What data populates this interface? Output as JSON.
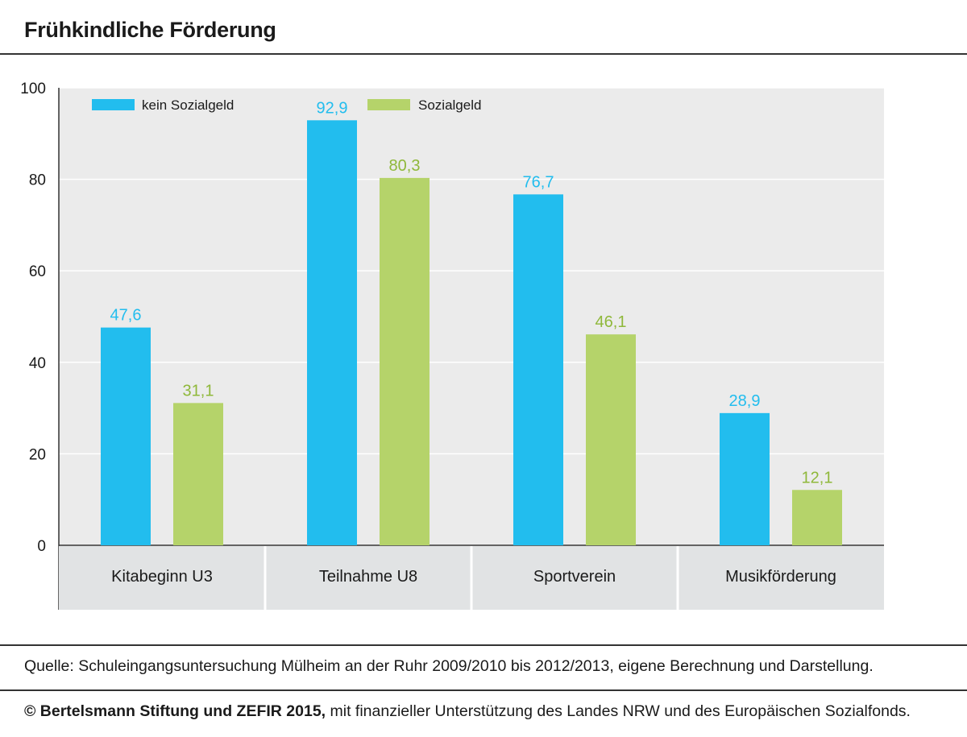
{
  "title": "Frühkindliche Förderung",
  "source": "Quelle: Schuleingangsuntersuchung Mülheim an der Ruhr 2009/2010 bis 2012/2013, eigene Berechnung und Darstellung.",
  "footer": {
    "bold": "© Bertelsmann Stiftung und ZEFIR 2015,",
    "rest": " mit finanzieller Unterstützung des Landes NRW und des Europäischen Sozialfonds."
  },
  "colors": {
    "kein_sozialgeld": "#22bdee",
    "sozialgeld": "#b5d36a",
    "label_green": "#8fb83a",
    "plot_bg": "#ebebeb",
    "category_bg": "#e1e3e4",
    "grid": "#ffffff"
  },
  "chart_data": {
    "type": "bar",
    "categories": [
      "Kitabeginn U3",
      "Teilnahme U8",
      "Sportverein",
      "Musikförderung"
    ],
    "series": [
      {
        "name": "kein Sozialgeld",
        "values": [
          47.6,
          92.9,
          76.7,
          28.9
        ],
        "labels": [
          "47,6",
          "92,9",
          "76,7",
          "28,9"
        ]
      },
      {
        "name": "Sozialgeld",
        "values": [
          31.1,
          80.3,
          46.1,
          12.1
        ],
        "labels": [
          "31,1",
          "80,3",
          "46,1",
          "12,1"
        ]
      }
    ],
    "ylim": [
      0,
      100
    ],
    "yticks": [
      0,
      20,
      40,
      60,
      80,
      100
    ],
    "grid": true,
    "legend": "top-left"
  }
}
